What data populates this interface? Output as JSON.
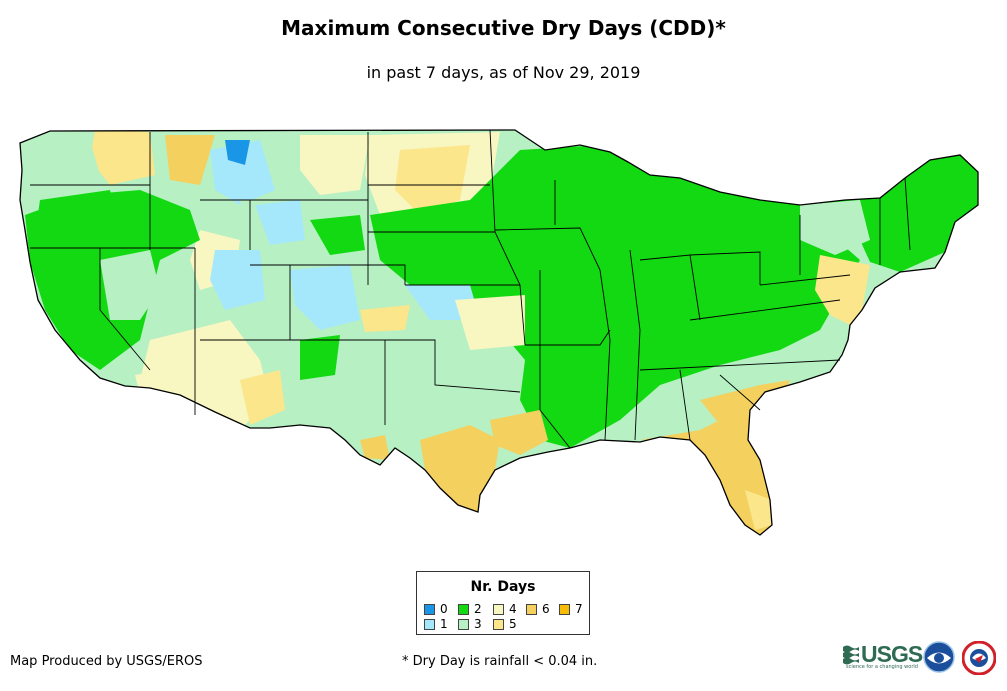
{
  "title": "Maximum Consecutive Dry Days (CDD)*",
  "subtitle": "in past 7 days, as of Nov 29, 2019",
  "legend": {
    "title": "Nr. Days",
    "items": [
      {
        "label": "0",
        "color": "#1a96e6"
      },
      {
        "label": "1",
        "color": "#a6e8fb"
      },
      {
        "label": "2",
        "color": "#12d912"
      },
      {
        "label": "3",
        "color": "#b6f0c3"
      },
      {
        "label": "4",
        "color": "#f8f6c1"
      },
      {
        "label": "5",
        "color": "#fbe68c"
      },
      {
        "label": "6",
        "color": "#f4d15f"
      },
      {
        "label": "7",
        "color": "#f7bc05"
      }
    ]
  },
  "credit": "Map Produced by USGS/EROS",
  "footnote": "* Dry Day is rainfall < 0.04 in.",
  "logos": {
    "usgs": {
      "wordmark": "USGS",
      "tagline": "science for a changing world",
      "color": "#2e6b52"
    },
    "noaa": {
      "wordmark": "noaa",
      "color": "#1b4f9c"
    },
    "nws": {
      "color": "#d0202a"
    }
  }
}
